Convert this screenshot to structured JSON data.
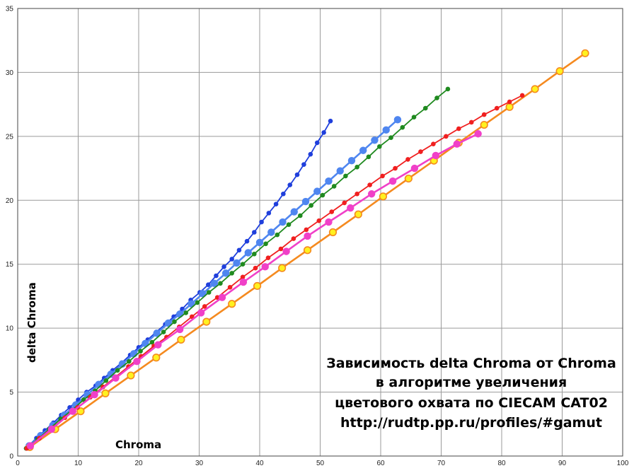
{
  "chart_data": {
    "type": "scatter",
    "title": "",
    "xlabel": "Chroma",
    "ylabel": "delta Chroma",
    "xlim": [
      0,
      100
    ],
    "ylim": [
      0,
      35
    ],
    "xticks": [
      0,
      10,
      20,
      30,
      40,
      50,
      60,
      70,
      80,
      90,
      100
    ],
    "yticks": [
      0,
      5,
      10,
      15,
      20,
      25,
      30,
      35
    ],
    "grid": true,
    "annotation": [
      "Зависимость delta Chroma от Chroma",
      "в алгоритме увеличения",
      "цветового охвата по CIECAM CAT02",
      "http://rudtp.pp.ru/profiles/#gamut"
    ],
    "series": [
      {
        "color": "#1f3fdc",
        "marker": "small",
        "x": [
          1.8,
          3.1,
          4.5,
          5.9,
          7.2,
          8.6,
          10.0,
          11.4,
          12.9,
          14.3,
          15.7,
          17.2,
          18.6,
          20.0,
          21.5,
          22.9,
          24.4,
          25.8,
          27.2,
          28.6,
          30.1,
          31.5,
          32.8,
          34.1,
          35.4,
          36.6,
          37.9,
          39.1,
          40.3,
          41.5,
          42.7,
          43.9,
          45.0,
          46.2,
          47.3,
          48.4,
          49.5,
          50.6,
          51.7
        ],
        "y": [
          0.8,
          1.4,
          2.0,
          2.6,
          3.2,
          3.8,
          4.4,
          5.0,
          5.5,
          6.1,
          6.7,
          7.3,
          7.9,
          8.5,
          9.1,
          9.7,
          10.3,
          10.9,
          11.5,
          12.2,
          12.8,
          13.4,
          14.1,
          14.8,
          15.4,
          16.1,
          16.8,
          17.5,
          18.3,
          19.0,
          19.7,
          20.5,
          21.2,
          22.0,
          22.8,
          23.6,
          24.5,
          25.3,
          26.2
        ]
      },
      {
        "color": "#4f86f0",
        "marker": "large",
        "x": [
          1.9,
          3.8,
          5.8,
          7.7,
          9.6,
          11.5,
          13.4,
          15.4,
          17.3,
          19.2,
          21.1,
          23.0,
          24.9,
          26.8,
          28.7,
          30.6,
          32.5,
          34.4,
          36.2,
          38.1,
          40.0,
          41.9,
          43.8,
          45.7,
          47.6,
          49.5,
          51.4,
          53.3,
          55.2,
          57.1,
          59.0,
          60.9,
          62.8
        ],
        "y": [
          0.8,
          1.6,
          2.4,
          3.2,
          4.0,
          4.8,
          5.6,
          6.4,
          7.2,
          8.0,
          8.8,
          9.6,
          10.4,
          11.1,
          11.9,
          12.7,
          13.5,
          14.3,
          15.1,
          15.9,
          16.7,
          17.5,
          18.3,
          19.1,
          19.9,
          20.7,
          21.5,
          22.3,
          23.1,
          23.9,
          24.7,
          25.5,
          26.3
        ]
      },
      {
        "color": "#1f8a1f",
        "marker": "small",
        "x": [
          1.4,
          3.3,
          5.2,
          7.1,
          9.0,
          10.9,
          12.8,
          14.6,
          16.5,
          18.4,
          20.3,
          22.2,
          24.1,
          25.9,
          27.8,
          29.7,
          31.6,
          33.5,
          35.4,
          37.2,
          39.1,
          41.0,
          42.9,
          44.8,
          46.7,
          48.5,
          50.4,
          52.3,
          54.2,
          56.1,
          58.0,
          59.8,
          61.7,
          63.6,
          65.5,
          67.4,
          69.3,
          71.1
        ],
        "y": [
          0.6,
          1.3,
          2.1,
          2.9,
          3.6,
          4.4,
          5.1,
          5.9,
          6.7,
          7.4,
          8.2,
          8.9,
          9.7,
          10.5,
          11.2,
          12.0,
          12.8,
          13.5,
          14.3,
          15.0,
          15.8,
          16.6,
          17.3,
          18.1,
          18.8,
          19.6,
          20.4,
          21.1,
          21.9,
          22.6,
          23.4,
          24.2,
          24.9,
          25.7,
          26.5,
          27.2,
          28.0,
          28.7
        ]
      },
      {
        "color": "#f58a1f",
        "marker": "ring",
        "fill": "#fff11f",
        "x": [
          2.0,
          6.2,
          10.4,
          14.5,
          18.7,
          22.9,
          27.0,
          31.2,
          35.4,
          39.6,
          43.7,
          47.9,
          52.1,
          56.3,
          60.4,
          64.6,
          68.8,
          72.9,
          77.1,
          81.3,
          85.5,
          89.6,
          93.8
        ],
        "y": [
          0.7,
          2.1,
          3.5,
          4.9,
          6.3,
          7.7,
          9.1,
          10.5,
          11.9,
          13.3,
          14.7,
          16.1,
          17.5,
          18.9,
          20.3,
          21.7,
          23.1,
          24.5,
          25.9,
          27.3,
          28.7,
          30.1,
          31.5
        ]
      },
      {
        "color": "#f01f1f",
        "marker": "small",
        "x": [
          1.5,
          3.6,
          5.7,
          7.8,
          9.9,
          12.0,
          14.1,
          16.2,
          18.3,
          20.4,
          22.5,
          24.6,
          26.7,
          28.8,
          30.9,
          33.0,
          35.1,
          37.2,
          39.3,
          41.4,
          43.5,
          45.6,
          47.7,
          49.8,
          51.9,
          54.0,
          56.1,
          58.2,
          60.3,
          62.4,
          64.5,
          66.6,
          68.7,
          70.8,
          72.9,
          75.0,
          77.1,
          79.2,
          81.3,
          83.4
        ],
        "y": [
          0.6,
          1.4,
          2.2,
          3.0,
          3.8,
          4.6,
          5.4,
          6.2,
          7.0,
          7.8,
          8.6,
          9.3,
          10.1,
          10.9,
          11.7,
          12.4,
          13.2,
          14.0,
          14.7,
          15.5,
          16.2,
          17.0,
          17.7,
          18.4,
          19.1,
          19.8,
          20.5,
          21.2,
          21.9,
          22.5,
          23.2,
          23.8,
          24.4,
          25.0,
          25.6,
          26.1,
          26.7,
          27.2,
          27.7,
          28.2
        ]
      },
      {
        "color": "#f040c8",
        "marker": "large",
        "x": [
          2.1,
          5.6,
          9.1,
          12.7,
          16.2,
          19.7,
          23.2,
          26.8,
          30.3,
          33.8,
          37.3,
          40.9,
          44.4,
          47.9,
          51.4,
          55.0,
          58.5,
          62.0,
          65.6,
          69.1,
          72.6,
          76.1
        ],
        "y": [
          0.8,
          2.1,
          3.5,
          4.8,
          6.1,
          7.4,
          8.7,
          9.9,
          11.2,
          12.4,
          13.6,
          14.8,
          16.0,
          17.2,
          18.3,
          19.4,
          20.5,
          21.5,
          22.5,
          23.5,
          24.4,
          25.2
        ]
      }
    ]
  }
}
